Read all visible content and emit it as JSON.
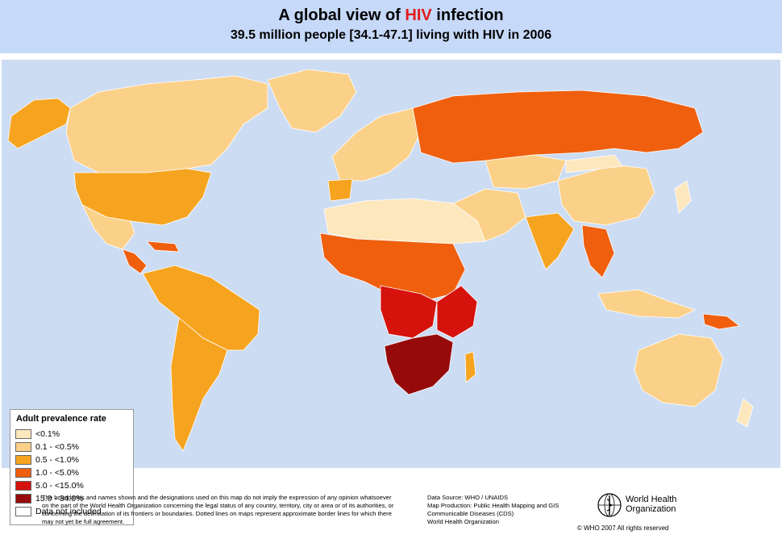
{
  "header": {
    "title_prefix": "A global view of ",
    "title_highlight": "HIV",
    "title_suffix": " infection",
    "subtitle": "39.5 million people [34.1-47.1] living with HIV in 2006"
  },
  "legend": {
    "title": "Adult prevalence rate",
    "items": [
      {
        "label": "<0.1%",
        "color": "#fde7bd"
      },
      {
        "label": "0.1 - <0.5%",
        "color": "#fbd18a"
      },
      {
        "label": "0.5 - <1.0%",
        "color": "#f6a41f"
      },
      {
        "label": "1.0 - <5.0%",
        "color": "#ef5f0e"
      },
      {
        "label": "5.0 - <15.0%",
        "color": "#d6120d"
      },
      {
        "label": "15.0 - 34.0%",
        "color": "#960a0c"
      },
      {
        "label": "Data not included",
        "color": "#ffffff"
      }
    ]
  },
  "map": {
    "ocean_color": "#ccdcf3",
    "land_color_no_data": "#ffffff"
  },
  "footer": {
    "disclaimer": "The boundaries and names shown and the designations used on this map do not imply the expression of any opinion whatsoever on the part of the World Health Organization concerning the legal status of any country, territory, city or area or of its authorities, or concerning the delimitation of its frontiers or boundaries. Dotted lines on maps represent approximate border lines for which there may not yet be full agreement.",
    "source_lines": [
      "Data Source: WHO / UNAIDS",
      "Map Production: Public Health Mapping and GIS",
      "Communicable Diseases (CDS)",
      "World Health Organization"
    ],
    "org_name_line1": "World Health",
    "org_name_line2": "Organization",
    "copyright": "© WHO 2007 All rights reserved"
  }
}
